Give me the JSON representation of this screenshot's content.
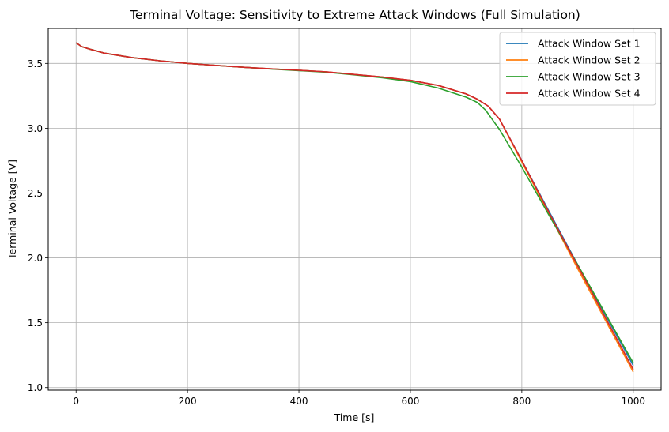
{
  "chart_data": {
    "type": "line",
    "title": "Terminal Voltage: Sensitivity to Extreme Attack Windows (Full Simulation)",
    "xlabel": "Time [s]",
    "ylabel": "Terminal Voltage [V]",
    "xlim": [
      -50,
      1050
    ],
    "ylim": [
      0.98,
      3.77
    ],
    "xticks": [
      0,
      200,
      400,
      600,
      800,
      1000
    ],
    "yticks": [
      1.0,
      1.5,
      2.0,
      2.5,
      3.0,
      3.5
    ],
    "xtick_labels": [
      "0",
      "200",
      "400",
      "600",
      "800",
      "1000"
    ],
    "ytick_labels": [
      "1.0",
      "1.5",
      "2.0",
      "2.5",
      "3.0",
      "3.5"
    ],
    "grid": true,
    "legend_position": "top-right",
    "series": [
      {
        "name": "Attack Window Set 1",
        "color": "#1f77b4",
        "x": [
          0,
          10,
          25,
          50,
          100,
          150,
          200,
          250,
          300,
          350,
          400,
          450,
          500,
          550,
          600,
          650,
          700,
          720,
          740,
          750,
          760,
          800,
          850,
          900,
          950,
          1000
        ],
        "y": [
          3.66,
          3.63,
          3.61,
          3.58,
          3.545,
          3.52,
          3.5,
          3.485,
          3.47,
          3.458,
          3.447,
          3.435,
          3.415,
          3.395,
          3.37,
          3.33,
          3.265,
          3.225,
          3.17,
          3.12,
          3.07,
          2.75,
          2.35,
          1.95,
          1.56,
          1.17
        ]
      },
      {
        "name": "Attack Window Set 2",
        "color": "#ff7f0e",
        "x": [
          0,
          10,
          25,
          50,
          100,
          150,
          200,
          250,
          300,
          350,
          400,
          450,
          500,
          550,
          600,
          650,
          700,
          720,
          740,
          750,
          760,
          800,
          850,
          900,
          950,
          1000
        ],
        "y": [
          3.66,
          3.63,
          3.61,
          3.58,
          3.545,
          3.52,
          3.5,
          3.485,
          3.47,
          3.458,
          3.447,
          3.435,
          3.415,
          3.395,
          3.37,
          3.33,
          3.265,
          3.225,
          3.17,
          3.12,
          3.07,
          2.74,
          2.33,
          1.92,
          1.52,
          1.12
        ]
      },
      {
        "name": "Attack Window Set 3",
        "color": "#2ca02c",
        "x": [
          0,
          10,
          25,
          50,
          100,
          150,
          200,
          250,
          300,
          350,
          400,
          450,
          500,
          550,
          600,
          650,
          700,
          720,
          735,
          750,
          760,
          800,
          850,
          900,
          950,
          1000
        ],
        "y": [
          3.66,
          3.63,
          3.61,
          3.58,
          3.545,
          3.52,
          3.5,
          3.485,
          3.47,
          3.457,
          3.445,
          3.432,
          3.412,
          3.39,
          3.36,
          3.31,
          3.24,
          3.2,
          3.14,
          3.05,
          2.99,
          2.7,
          2.32,
          1.95,
          1.57,
          1.19
        ]
      },
      {
        "name": "Attack Window Set 4",
        "color": "#d62728",
        "x": [
          0,
          10,
          25,
          50,
          100,
          150,
          200,
          250,
          300,
          350,
          400,
          450,
          500,
          550,
          600,
          650,
          700,
          720,
          740,
          750,
          760,
          800,
          850,
          900,
          950,
          1000
        ],
        "y": [
          3.66,
          3.63,
          3.61,
          3.58,
          3.545,
          3.52,
          3.5,
          3.485,
          3.47,
          3.458,
          3.447,
          3.435,
          3.415,
          3.395,
          3.37,
          3.33,
          3.265,
          3.225,
          3.17,
          3.12,
          3.07,
          2.75,
          2.34,
          1.94,
          1.54,
          1.14
        ]
      }
    ]
  }
}
